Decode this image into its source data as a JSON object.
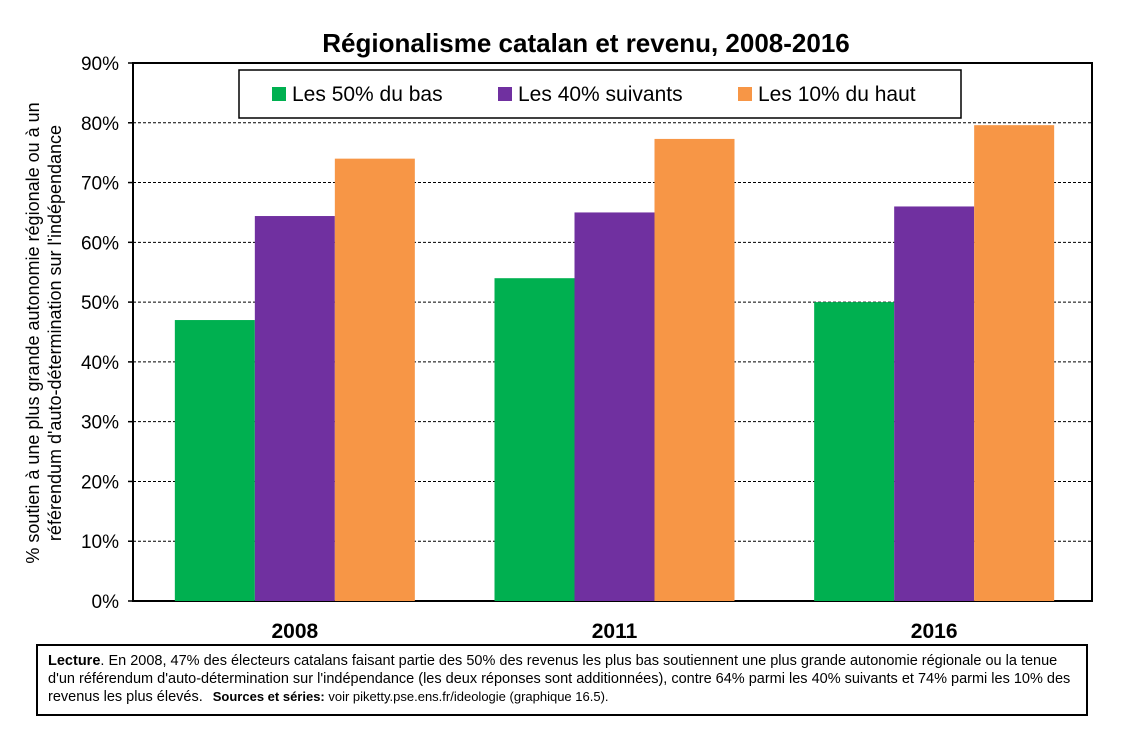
{
  "chart_data": {
    "type": "bar",
    "title": "Régionalisme catalan et revenu, 2008-2016",
    "ylabel_line1": "% soutien à une plus grande autonomie régionale ou à un",
    "ylabel_line2": "référendum d'auto-détermination sur l'indépendance",
    "xlabel": "",
    "categories": [
      "2008",
      "2011",
      "2016"
    ],
    "ylim": [
      0,
      90
    ],
    "yticks": [
      0,
      10,
      20,
      30,
      40,
      50,
      60,
      70,
      80,
      90
    ],
    "ytick_labels": [
      "0%",
      "10%",
      "20%",
      "30%",
      "40%",
      "50%",
      "60%",
      "70%",
      "80%",
      "90%"
    ],
    "grid": "horizontal dashed",
    "legend_position": "top-center",
    "series": [
      {
        "name": "Les 50% du bas",
        "color": "#00b050",
        "values": [
          47,
          54,
          50
        ]
      },
      {
        "name": "Les 40% suivants",
        "color": "#7030a0",
        "values": [
          64.4,
          65,
          66
        ]
      },
      {
        "name": "Les 10% du haut",
        "color": "#f79646",
        "values": [
          74,
          77.3,
          79.6
        ]
      }
    ]
  },
  "note": {
    "lecture_label": "Lecture",
    "lecture_text": ". En 2008, 47% des électeurs catalans faisant partie des 50% des revenus les plus bas soutiennent une plus grande autonomie régionale ou la tenue d'un référendum d'auto-détermination sur l'indépendance (les deux réponses sont additionnées), contre 64% parmi les 40% suivants et 74% parmi les 10% des revenus les plus élevés.",
    "sources_label": "Sources et séries:",
    "sources_text": " voir piketty.pse.ens.fr/ideologie (graphique 16.5)."
  }
}
